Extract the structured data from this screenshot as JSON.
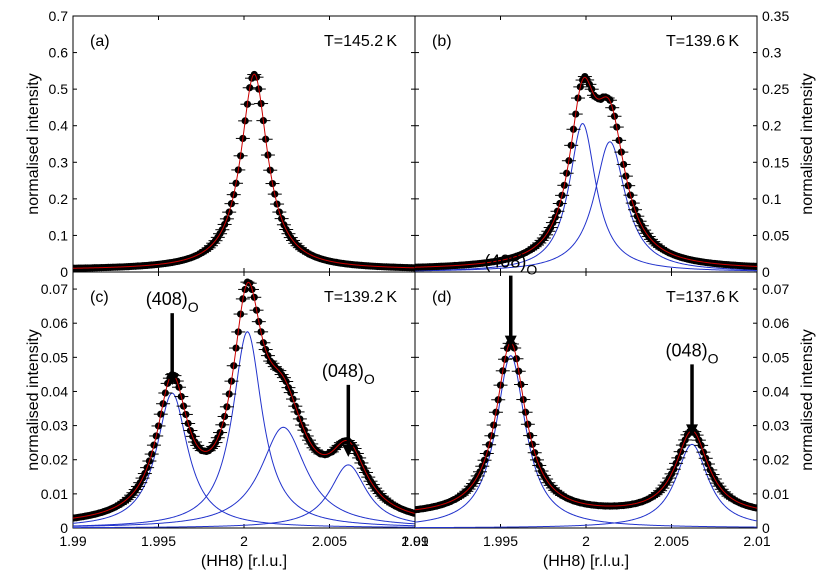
{
  "chart_data": [
    {
      "type": "scatter",
      "panel": "(a)",
      "annotation": "T=145.2 K",
      "xlabel": "",
      "ylabel": "normalised intensity",
      "ylabel_side": "left",
      "xlim": [
        1.99,
        2.01
      ],
      "ylim": [
        0,
        0.7
      ],
      "yticks": [
        "0",
        "0.1",
        "0.2",
        "0.3",
        "0.4",
        "0.5",
        "0.6",
        "0.7"
      ],
      "xticks": [],
      "peaks": [
        {
          "center": 2.0006,
          "amp": 0.535,
          "width": 0.00095
        }
      ],
      "background": 0.006,
      "series": [
        {
          "role": "data",
          "color": "#000000",
          "marker": "filled-circle-with-errorbar"
        },
        {
          "role": "total-fit",
          "color": "#cc0000"
        }
      ]
    },
    {
      "type": "scatter",
      "panel": "(b)",
      "annotation": "T=139.6 K",
      "xlabel": "",
      "ylabel": "normalised intensity",
      "ylabel_side": "right",
      "xlim": [
        1.99,
        2.01
      ],
      "ylim": [
        0,
        0.35
      ],
      "yticks": [
        "0",
        "0.05",
        "0.1",
        "0.15",
        "0.2",
        "0.25",
        "0.3",
        "0.35"
      ],
      "xticks": [],
      "peaks": [
        {
          "center": 1.9998,
          "amp": 0.203,
          "width": 0.00095
        },
        {
          "center": 2.0014,
          "amp": 0.178,
          "width": 0.0011
        }
      ],
      "background": 0.003,
      "series": [
        {
          "role": "data",
          "color": "#000000",
          "marker": "filled-circle-with-errorbar"
        },
        {
          "role": "component-fits",
          "color": "#2233cc"
        },
        {
          "role": "total-fit",
          "color": "#cc0000"
        }
      ]
    },
    {
      "type": "scatter",
      "panel": "(c)",
      "annotation": "T=139.2 K",
      "xlabel": "(HH8) [r.l.u.]",
      "ylabel": "normalised intensity",
      "ylabel_side": "left",
      "xlim": [
        1.99,
        2.01
      ],
      "ylim": [
        0,
        0.075
      ],
      "yticks": [
        "0",
        "0.01",
        "0.02",
        "0.03",
        "0.04",
        "0.05",
        "0.06",
        "0.07"
      ],
      "xticks": [
        "1.99",
        "1.995",
        "2",
        "2.005",
        "2.01"
      ],
      "peaks": [
        {
          "center": 1.9958,
          "amp": 0.0395,
          "width": 0.0011
        },
        {
          "center": 2.0002,
          "amp": 0.0575,
          "width": 0.00105
        },
        {
          "center": 2.0023,
          "amp": 0.0295,
          "width": 0.0016
        },
        {
          "center": 2.0061,
          "amp": 0.0185,
          "width": 0.0013
        }
      ],
      "background": 0.0003,
      "labels": [
        {
          "main": "(408)",
          "sub": "O",
          "x": 1.9958,
          "points_to": 0.0395
        },
        {
          "main": "(048)",
          "sub": "O",
          "x": 2.0061,
          "points_to": 0.0185
        }
      ],
      "series": [
        {
          "role": "data",
          "color": "#000000",
          "marker": "filled-circle-with-errorbar"
        },
        {
          "role": "component-fits",
          "color": "#2233cc"
        },
        {
          "role": "total-fit",
          "color": "#cc0000"
        }
      ]
    },
    {
      "type": "scatter",
      "panel": "(d)",
      "annotation": "T=137.6 K",
      "xlabel": "(HH8) [r.l.u.]",
      "ylabel": "normalised intensity",
      "ylabel_side": "right",
      "xlim": [
        1.99,
        2.01
      ],
      "ylim": [
        0,
        0.075
      ],
      "yticks": [
        "0",
        "0.01",
        "0.02",
        "0.03",
        "0.04",
        "0.05",
        "0.06",
        "0.07"
      ],
      "xticks": [
        "1.99",
        "1.995",
        "2",
        "2.005",
        "2.01"
      ],
      "peaks": [
        {
          "center": 1.9956,
          "amp": 0.0505,
          "width": 0.00105
        },
        {
          "center": 2.0062,
          "amp": 0.0245,
          "width": 0.00115
        }
      ],
      "background": 0.0035,
      "labels": [
        {
          "main": "(408)",
          "sub": "O",
          "x": 1.9956,
          "points_to": 0.0505
        },
        {
          "main": "(048)",
          "sub": "O",
          "x": 2.0062,
          "points_to": 0.0245
        }
      ],
      "series": [
        {
          "role": "data",
          "color": "#000000",
          "marker": "filled-circle-with-errorbar"
        },
        {
          "role": "component-fits",
          "color": "#2233cc"
        },
        {
          "role": "total-fit",
          "color": "#cc0000"
        }
      ]
    }
  ]
}
